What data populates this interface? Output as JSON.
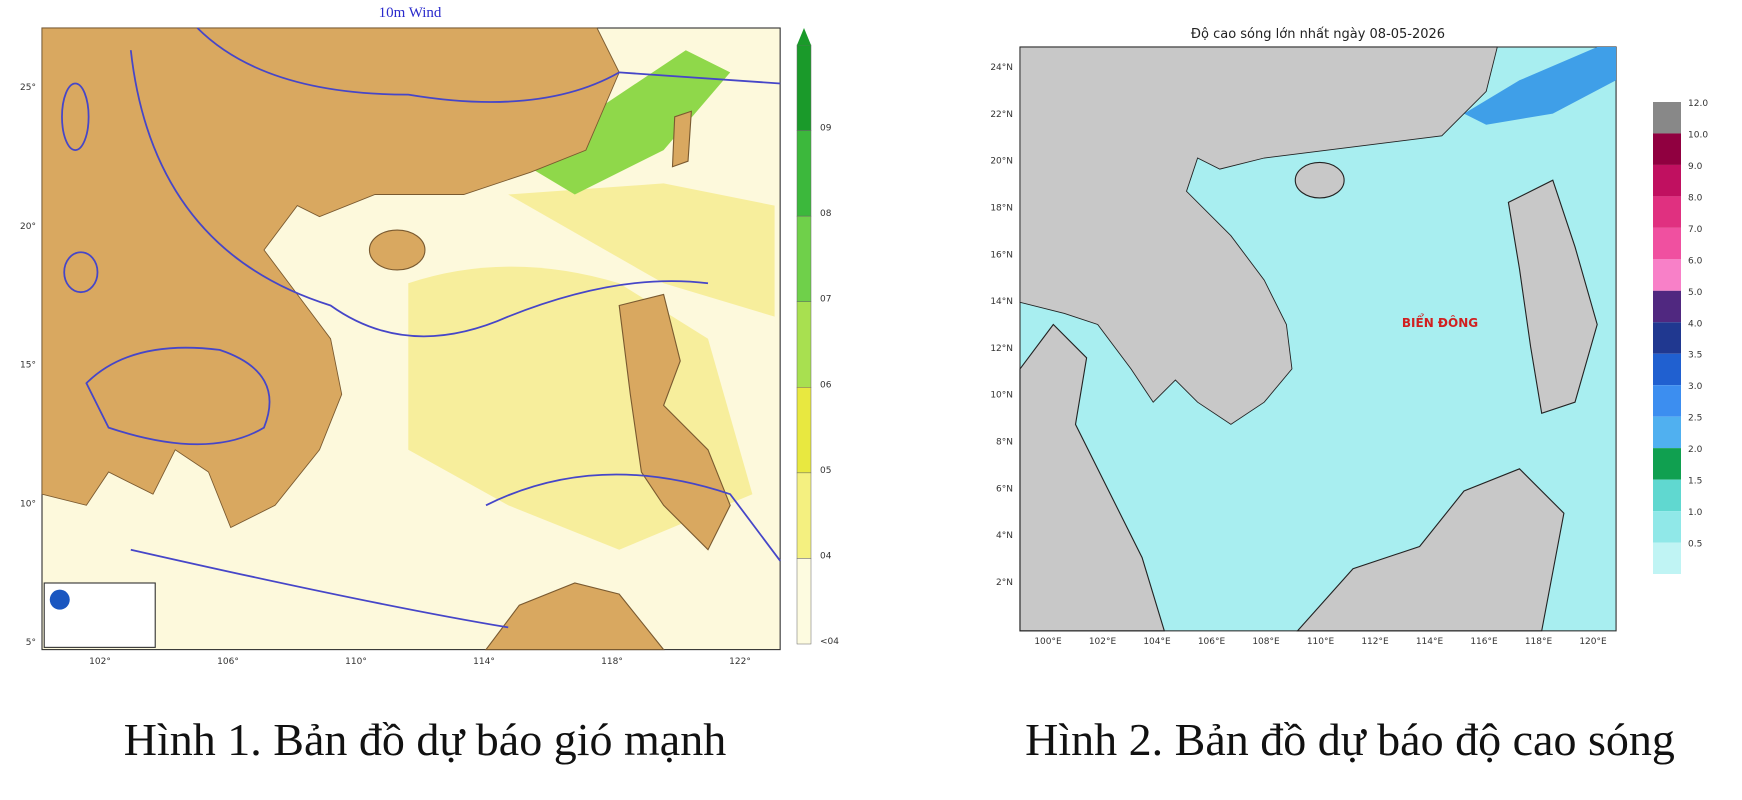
{
  "captions": [
    "Hình 1. Bản đồ dự báo gió mạnh",
    "Hình 2. Bản đồ dự báo độ cao sóng"
  ],
  "map1": {
    "title": "10m Wind",
    "colorbar_labels": [
      "09",
      "08",
      "07",
      "06",
      "05",
      "04",
      "<04"
    ],
    "lat_labels": [
      "25°",
      "20°",
      "15°",
      "10°",
      "5°"
    ],
    "lon_labels": [
      "102°",
      "106°",
      "110°",
      "114°",
      "118°",
      "122°"
    ]
  },
  "map2": {
    "title": "Độ cao sóng lớn nhất ngày 08-05-2026",
    "sea_label": "BIỂN ĐÔNG",
    "colorbar_labels": [
      "12.0",
      "10.0",
      "9.0",
      "8.0",
      "7.0",
      "6.0",
      "5.0",
      "4.0",
      "3.5",
      "3.0",
      "2.5",
      "2.0",
      "1.5",
      "1.0",
      "0.5"
    ],
    "lat_labels": [
      "24°N",
      "22°N",
      "20°N",
      "18°N",
      "16°N",
      "14°N",
      "12°N",
      "10°N",
      "8°N",
      "6°N",
      "4°N",
      "2°N"
    ],
    "lon_labels": [
      "100°E",
      "102°E",
      "104°E",
      "106°E",
      "108°E",
      "110°E",
      "112°E",
      "114°E",
      "116°E",
      "118°E",
      "120°E"
    ]
  }
}
